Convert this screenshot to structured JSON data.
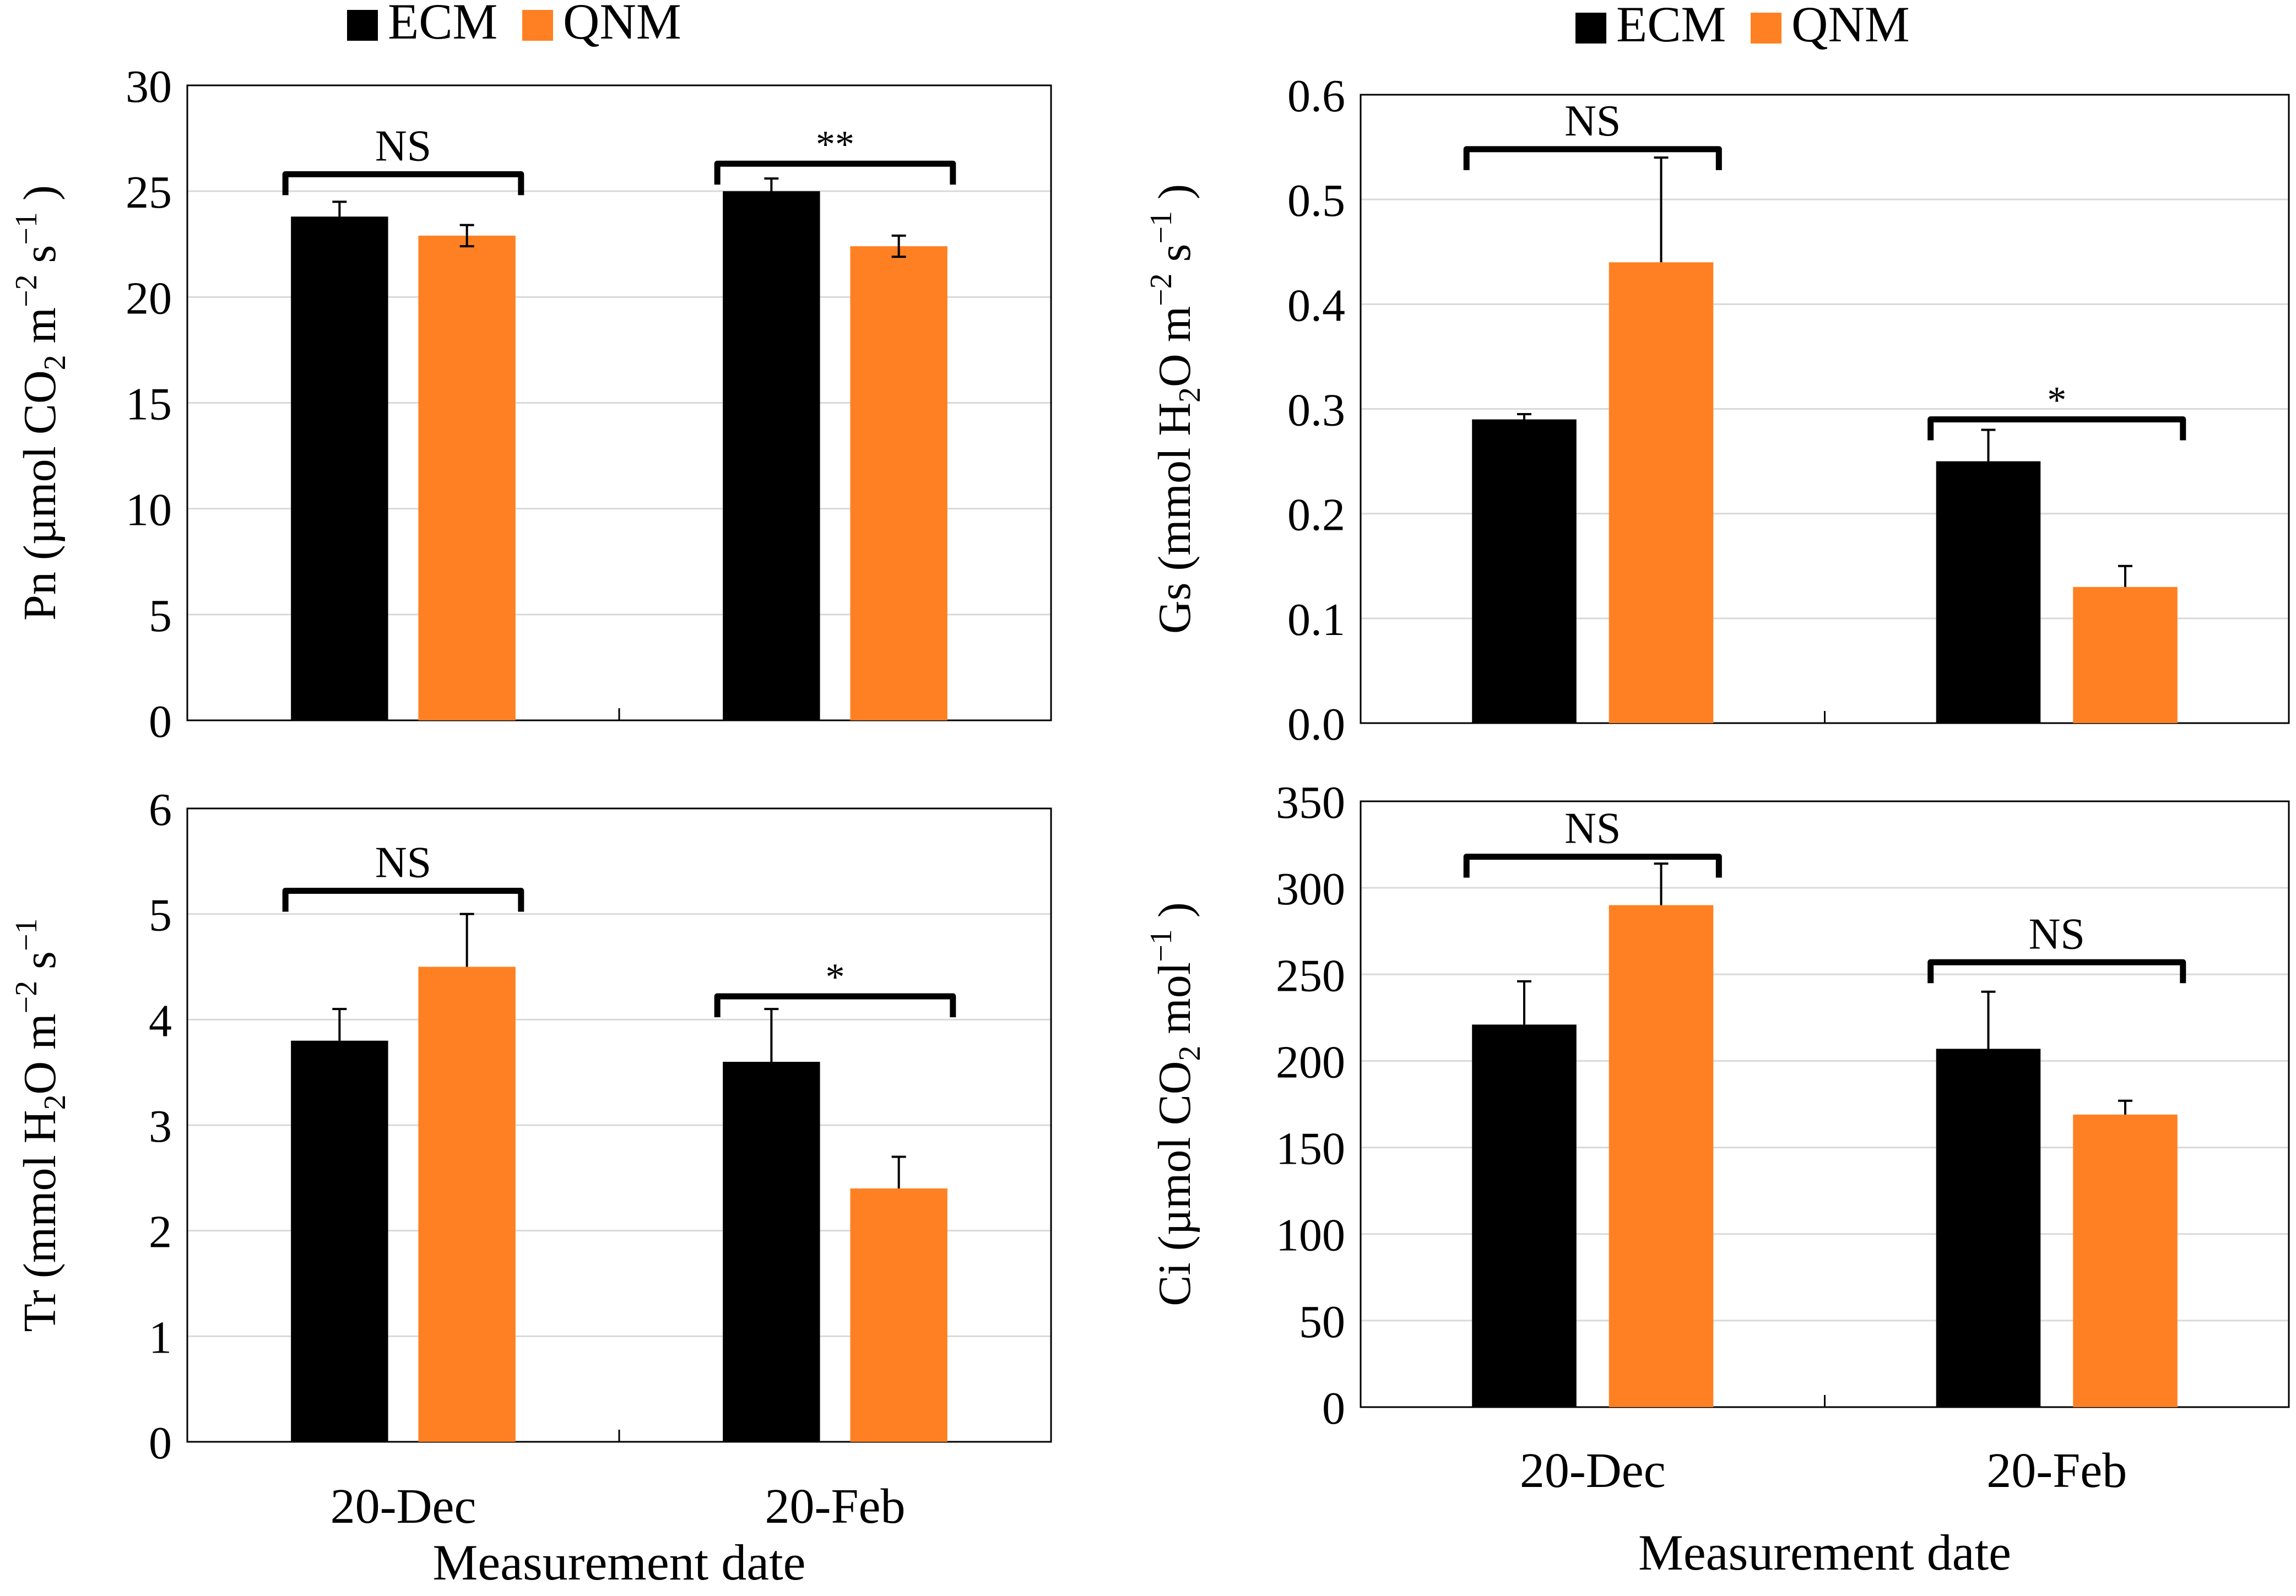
{
  "colors": {
    "ecm": "#000000",
    "qnm": "#FF8022",
    "grid": "#d9d9d9",
    "axis": "#000000"
  },
  "chart_data": [
    {
      "id": "pn",
      "type": "bar",
      "categories": [
        "20-Dec",
        "20-Feb"
      ],
      "show_category_labels": false,
      "series": [
        {
          "name": "ECM",
          "values": [
            23.8,
            25.0
          ],
          "errors": [
            0.7,
            0.6
          ]
        },
        {
          "name": "QNM",
          "values": [
            22.9,
            22.4
          ],
          "errors": [
            0.5,
            0.5
          ]
        }
      ],
      "ylim": [
        0,
        30
      ],
      "yticks": [
        "0",
        "5",
        "10",
        "15",
        "20",
        "25",
        "30"
      ],
      "ylabel": {
        "prefix": "Pn (µmol CO",
        "sub": "2",
        "mid": " m",
        "sup1": "−2",
        "mid2": " s",
        "sup2": "−1",
        "suffix": " )"
      },
      "significance": [
        {
          "category": "20-Dec",
          "label": "NS",
          "y": 25.8
        },
        {
          "category": "20-Feb",
          "label": "**",
          "y": 26.3
        }
      ],
      "legend": {
        "position": "top",
        "items": [
          "ECM",
          "QNM"
        ]
      },
      "grid": true
    },
    {
      "id": "gs",
      "type": "bar",
      "categories": [
        "20-Dec",
        "20-Feb"
      ],
      "show_category_labels": false,
      "series": [
        {
          "name": "ECM",
          "values": [
            0.29,
            0.25
          ],
          "errors": [
            0.005,
            0.03
          ]
        },
        {
          "name": "QNM",
          "values": [
            0.44,
            0.13
          ],
          "errors": [
            0.1,
            0.02
          ]
        }
      ],
      "ylim": [
        0,
        0.6
      ],
      "yticks": [
        "0.0",
        "0.1",
        "0.2",
        "0.3",
        "0.4",
        "0.5",
        "0.6"
      ],
      "ylabel": {
        "prefix": "Gs (mmol H",
        "sub": "2",
        "mid": "O m",
        "sup1": "−2",
        "mid2": " s",
        "sup2": "−1",
        "suffix": " )"
      },
      "significance": [
        {
          "category": "20-Dec",
          "label": "NS",
          "y": 0.548
        },
        {
          "category": "20-Feb",
          "label": "*",
          "y": 0.29
        }
      ],
      "legend": {
        "position": "top",
        "items": [
          "ECM",
          "QNM"
        ]
      },
      "grid": true
    },
    {
      "id": "tr",
      "type": "bar",
      "categories": [
        "20-Dec",
        "20-Feb"
      ],
      "show_category_labels": true,
      "series": [
        {
          "name": "ECM",
          "values": [
            3.8,
            3.6
          ],
          "errors": [
            0.3,
            0.5
          ]
        },
        {
          "name": "QNM",
          "values": [
            4.5,
            2.4
          ],
          "errors": [
            0.5,
            0.3
          ]
        }
      ],
      "ylim": [
        0,
        6
      ],
      "yticks": [
        "0",
        "1",
        "2",
        "3",
        "4",
        "5",
        "6"
      ],
      "ylabel": {
        "prefix": "Tr (mmol H",
        "sub": "2",
        "mid": "O m",
        "sup1": "−2",
        "mid2": " s",
        "sup2": "−1",
        "suffix": ""
      },
      "xlabel": "Measurement date",
      "significance": [
        {
          "category": "20-Dec",
          "label": "NS",
          "y": 5.22
        },
        {
          "category": "20-Feb",
          "label": "*",
          "y": 4.22
        }
      ],
      "grid": true
    },
    {
      "id": "ci",
      "type": "bar",
      "categories": [
        "20-Dec",
        "20-Feb"
      ],
      "show_category_labels": true,
      "series": [
        {
          "name": "ECM",
          "values": [
            221,
            207
          ],
          "errors": [
            25,
            33
          ]
        },
        {
          "name": "QNM",
          "values": [
            290,
            169
          ],
          "errors": [
            24,
            8
          ]
        }
      ],
      "ylim": [
        0,
        350
      ],
      "yticks": [
        "0",
        "50",
        "100",
        "150",
        "200",
        "250",
        "300",
        "350"
      ],
      "ylabel": {
        "prefix": "Ci (µmol CO",
        "sub": "2",
        "mid": " mol",
        "sup1": "−1",
        "mid2": "",
        "sup2": "",
        "suffix": " )"
      },
      "xlabel": "Measurement date",
      "significance": [
        {
          "category": "20-Dec",
          "label": "NS",
          "y": 318
        },
        {
          "category": "20-Feb",
          "label": "NS",
          "y": 257
        }
      ],
      "grid": true
    }
  ]
}
